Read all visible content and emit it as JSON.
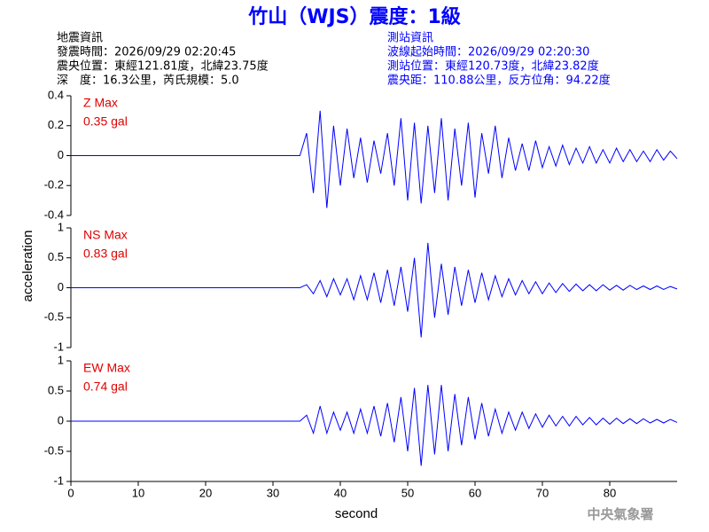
{
  "header": {
    "title": "竹山（WJS）震度：1級",
    "left": [
      "地震資訊",
      "發震時間：2026/09/29 02:20:45",
      "震央位置：東經121.81度，北緯23.75度",
      "深　度：16.3公里，芮氏規模：5.0"
    ],
    "right": [
      "測站資訊",
      "波線起始時間：2026/09/29 02:20:30",
      "測站位置：東經120.73度，北緯23.82度",
      "震央距：110.88公里，反方位角：94.22度"
    ],
    "footer": "中央氣象署"
  },
  "chart_data": [
    {
      "type": "line",
      "annotation": "Z Max",
      "max_label": "0.35 gal",
      "color": "#0000ff",
      "ylabel": "acceleration",
      "xlim": [
        0,
        90
      ],
      "ylim": [
        -0.4,
        0.4
      ],
      "yticks": [
        -0.4,
        -0.2,
        0,
        0.2,
        0.4
      ],
      "x": [
        0,
        34,
        35,
        36,
        37,
        38,
        39,
        40,
        41,
        42,
        43,
        44,
        45,
        46,
        47,
        48,
        49,
        50,
        51,
        52,
        53,
        54,
        55,
        56,
        57,
        58,
        59,
        60,
        61,
        62,
        63,
        64,
        65,
        66,
        67,
        68,
        69,
        70,
        71,
        72,
        73,
        74,
        75,
        76,
        77,
        78,
        79,
        80,
        81,
        82,
        83,
        84,
        85,
        86,
        87,
        88,
        89,
        90
      ],
      "values": [
        0,
        0,
        0.15,
        -0.25,
        0.3,
        -0.35,
        0.2,
        -0.2,
        0.18,
        -0.15,
        0.12,
        -0.18,
        0.1,
        -0.12,
        0.15,
        -0.2,
        0.25,
        -0.3,
        0.22,
        -0.32,
        0.2,
        -0.25,
        0.25,
        -0.3,
        0.18,
        -0.2,
        0.22,
        -0.28,
        0.15,
        -0.12,
        0.2,
        -0.15,
        0.12,
        -0.1,
        0.08,
        -0.1,
        0.1,
        -0.08,
        0.06,
        -0.07,
        0.07,
        -0.06,
        0.05,
        -0.05,
        0.06,
        -0.05,
        0.04,
        -0.05,
        0.05,
        -0.04,
        0.04,
        -0.04,
        0.03,
        -0.04,
        0.04,
        -0.03,
        0.03,
        -0.02
      ]
    },
    {
      "type": "line",
      "annotation": "NS Max",
      "max_label": "0.83 gal",
      "color": "#0000ff",
      "xlim": [
        0,
        90
      ],
      "ylim": [
        -1,
        1
      ],
      "yticks": [
        -1,
        -0.5,
        0,
        0.5,
        1
      ],
      "x": [
        0,
        34,
        35,
        36,
        37,
        38,
        39,
        40,
        41,
        42,
        43,
        44,
        45,
        46,
        47,
        48,
        49,
        50,
        51,
        52,
        53,
        54,
        55,
        56,
        57,
        58,
        59,
        60,
        61,
        62,
        63,
        64,
        65,
        66,
        67,
        68,
        69,
        70,
        71,
        72,
        73,
        74,
        75,
        76,
        77,
        78,
        79,
        80,
        81,
        82,
        83,
        84,
        85,
        86,
        87,
        88,
        89,
        90
      ],
      "values": [
        0,
        0,
        0.05,
        -0.1,
        0.12,
        -0.15,
        0.15,
        -0.12,
        0.15,
        -0.2,
        0.2,
        -0.2,
        0.25,
        -0.25,
        0.3,
        -0.3,
        0.35,
        -0.4,
        0.5,
        -0.83,
        0.75,
        -0.5,
        0.4,
        -0.45,
        0.35,
        -0.3,
        0.3,
        -0.25,
        0.25,
        -0.2,
        0.2,
        -0.15,
        0.15,
        -0.12,
        0.12,
        -0.1,
        0.1,
        -0.1,
        0.08,
        -0.08,
        0.07,
        -0.06,
        0.06,
        -0.05,
        0.05,
        -0.05,
        0.05,
        -0.04,
        0.04,
        -0.04,
        0.04,
        -0.03,
        0.03,
        -0.03,
        0.03,
        -0.03,
        0.02,
        -0.02
      ]
    },
    {
      "type": "line",
      "annotation": "EW Max",
      "max_label": "0.74 gal",
      "color": "#0000ff",
      "xlabel": "second",
      "xlim": [
        0,
        90
      ],
      "xticks": [
        0,
        10,
        20,
        30,
        40,
        50,
        60,
        70,
        80
      ],
      "ylim": [
        -1,
        1
      ],
      "yticks": [
        -1,
        -0.5,
        0,
        0.5,
        1
      ],
      "x": [
        0,
        34,
        35,
        36,
        37,
        38,
        39,
        40,
        41,
        42,
        43,
        44,
        45,
        46,
        47,
        48,
        49,
        50,
        51,
        52,
        53,
        54,
        55,
        56,
        57,
        58,
        59,
        60,
        61,
        62,
        63,
        64,
        65,
        66,
        67,
        68,
        69,
        70,
        71,
        72,
        73,
        74,
        75,
        76,
        77,
        78,
        79,
        80,
        81,
        82,
        83,
        84,
        85,
        86,
        87,
        88,
        89,
        90
      ],
      "values": [
        0,
        0,
        0.1,
        -0.2,
        0.25,
        -0.2,
        0.15,
        -0.15,
        0.15,
        -0.2,
        0.2,
        -0.2,
        0.25,
        -0.25,
        0.3,
        -0.35,
        0.4,
        -0.5,
        0.55,
        -0.74,
        0.6,
        -0.55,
        0.6,
        -0.5,
        0.45,
        -0.4,
        0.4,
        -0.3,
        0.3,
        -0.25,
        0.2,
        -0.2,
        0.15,
        -0.15,
        0.15,
        -0.12,
        0.12,
        -0.1,
        0.1,
        -0.08,
        0.08,
        -0.08,
        0.08,
        -0.06,
        0.06,
        -0.06,
        0.05,
        -0.05,
        0.05,
        -0.04,
        0.04,
        -0.04,
        0.04,
        -0.03,
        0.03,
        -0.03,
        0.03,
        -0.02
      ]
    }
  ]
}
